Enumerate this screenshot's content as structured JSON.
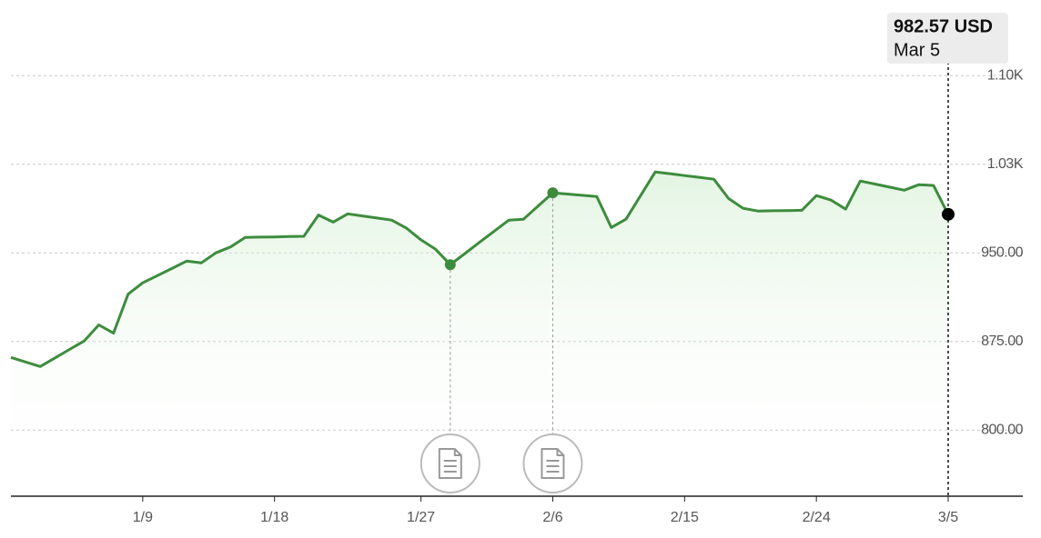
{
  "chart_data": {
    "type": "line",
    "categories": [
      null,
      null,
      null,
      null,
      null,
      null,
      null,
      null,
      null,
      "1/9",
      null,
      null,
      null,
      null,
      null,
      null,
      null,
      null,
      "1/18",
      null,
      null,
      null,
      null,
      null,
      null,
      null,
      null,
      null,
      "1/27",
      null,
      null,
      null,
      null,
      null,
      null,
      null,
      null,
      "2/6",
      null,
      null,
      null,
      null,
      null,
      null,
      null,
      null,
      "2/15",
      null,
      null,
      null,
      null,
      null,
      null,
      null,
      null,
      "2/24",
      null,
      null,
      null,
      null,
      null,
      null,
      null,
      null,
      "3/5"
    ],
    "series": [
      {
        "color": "#3d8c3d",
        "values": [
          861.5,
          857.6,
          853.8,
          861,
          868.2,
          875.4,
          889,
          882,
          915,
          924.6,
          930.7,
          936.8,
          943,
          941.5,
          950,
          955,
          963,
          963.3,
          963.5,
          963.8,
          964,
          982,
          976,
          983,
          981.2,
          979.5,
          977.7,
          971,
          961,
          953,
          940,
          949.4,
          958.9,
          968.3,
          977.7,
          978.5,
          989.7,
          1000.8,
          999.8,
          998.7,
          997.7,
          971.5,
          978.5,
          998.5,
          1018.5,
          1017,
          1015.4,
          1013.9,
          1012.3,
          996,
          987.7,
          985.4,
          985.6,
          985.8,
          986,
          998.5,
          994.6,
          987,
          1010.8,
          1008.2,
          1005.6,
          1003,
          1007.7,
          1007,
          982.57
        ]
      }
    ],
    "ylim": [
      744,
      1150
    ],
    "yticks": [
      {
        "value": 800,
        "label": "800.00"
      },
      {
        "value": 875,
        "label": "875.00"
      },
      {
        "value": 950,
        "label": "950.00"
      },
      {
        "value": 1025,
        "label": "1.03K"
      },
      {
        "value": 1100,
        "label": "1.10K"
      }
    ],
    "grid": true,
    "event_points": [
      30,
      37
    ],
    "tooltip_value": "982.57 USD",
    "tooltip_date": "Mar 5"
  }
}
